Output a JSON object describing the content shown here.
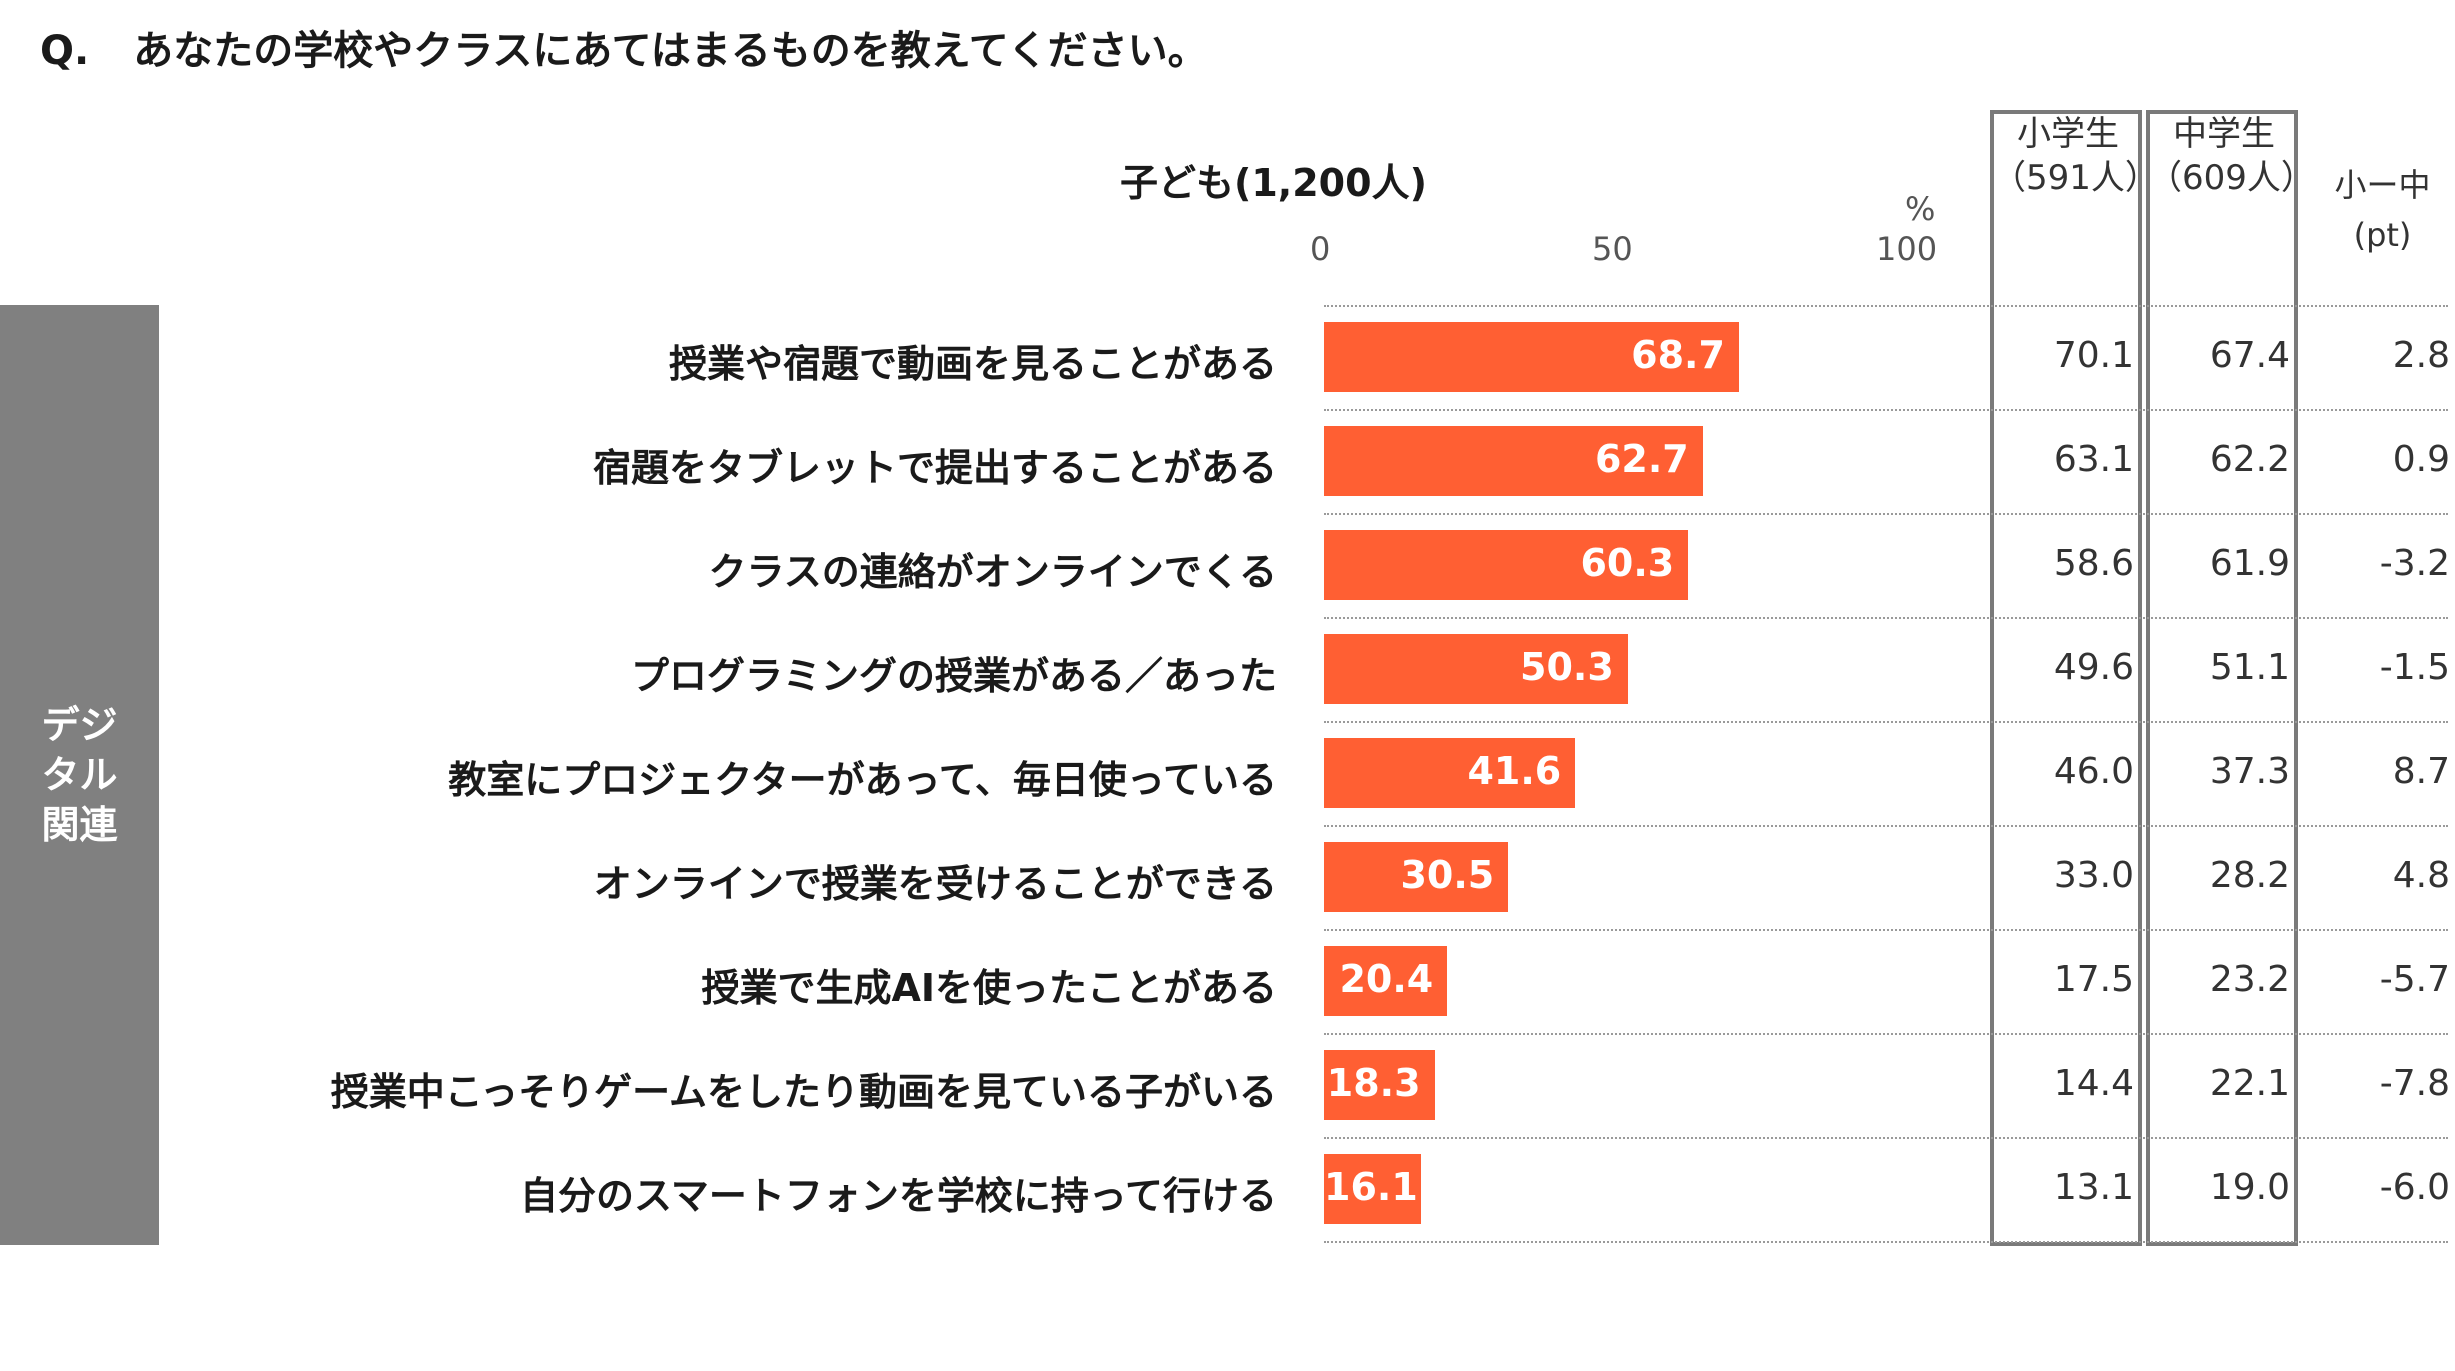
{
  "question": {
    "mark": "Q.",
    "text": "あなたの学校やクラスにあてはまるものを教えてください。"
  },
  "group_label": "デジタル関連",
  "colors": {
    "bar": "#ff5f33",
    "group_bg": "#808080"
  },
  "columns": {
    "elementary": {
      "title": "小学生",
      "n": "（591人）"
    },
    "middle": {
      "title": "中学生",
      "n": "（609人）"
    },
    "diff": {
      "title": "小ー中",
      "unit": "(pt)"
    }
  },
  "chart_data": {
    "type": "bar",
    "orientation": "horizontal",
    "title": "子ども(1,200人)",
    "unit": "%",
    "xlim": [
      0,
      100
    ],
    "ticks": [
      "0",
      "50",
      "100"
    ],
    "categories": [
      "授業や宿題で動画を見ることがある",
      "宿題をタブレットで提出することがある",
      "クラスの連絡がオンラインでくる",
      "プログラミングの授業がある／あった",
      "教室にプロジェクターがあって、毎日使っている",
      "オンラインで授業を受けることができる",
      "授業で生成AIを使ったことがある",
      "授業中こっそりゲームをしたり動画を見ている子がいる",
      "自分のスマートフォンを学校に持って行ける"
    ],
    "values": [
      68.7,
      62.7,
      60.3,
      50.3,
      41.6,
      30.5,
      20.4,
      18.3,
      16.1
    ],
    "value_labels": [
      "68.7",
      "62.7",
      "60.3",
      "50.3",
      "41.6",
      "30.5",
      "20.4",
      "18.3",
      "16.1"
    ],
    "elementary": [
      "70.1",
      "63.1",
      "58.6",
      "49.6",
      "46.0",
      "33.0",
      "17.5",
      "14.4",
      "13.1"
    ],
    "middle": [
      "67.4",
      "62.2",
      "61.9",
      "51.1",
      "37.3",
      "28.2",
      "23.2",
      "22.1",
      "19.0"
    ],
    "diff": [
      "2.8",
      "0.9",
      "-3.2",
      "-1.5",
      "8.7",
      "4.8",
      "-5.7",
      "-7.8",
      "-6.0"
    ]
  }
}
